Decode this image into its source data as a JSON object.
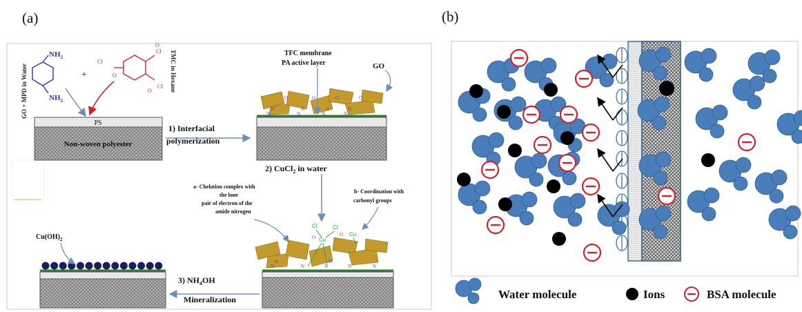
{
  "panel_a": {
    "label": "(a)",
    "mpd_formula": "NH",
    "mpd_formula_sub": "2",
    "mpd_side_label": "GO + MPD in Water",
    "plus": "+",
    "tmc_side_label": "TMC in Hexane",
    "acyl_cl": "Cl",
    "acyl_o": "O",
    "ps_label": "PS",
    "nonwoven_label": "Non-woven polyester",
    "step1_line1": "1) Interfacial",
    "step1_line2": "polymerization",
    "tfc_line1": "TFC membrane",
    "tfc_line2": "PA active layer",
    "go_label": "GO",
    "step2_prefix": "2) CuCl",
    "step2_sub": "2",
    "step2_suffix": " in water",
    "note_a": [
      "a- Chelation complex with",
      "the lone",
      "pair of electron of  the",
      "amide nitrogen"
    ],
    "note_b": [
      "b- Coordination with",
      "carbonyl groups"
    ],
    "cuoh_prefix": "Cu(OH)",
    "cuoh_sub": "2",
    "step3_prefix": "3) NH",
    "step3_sub": "4",
    "step3_suffix": "OH",
    "step3_line2": "Mineralization",
    "cl_label": "Cl",
    "cu_label": "Cu",
    "amide_n": "N",
    "amide_h": "H",
    "amide_o": "O",
    "colors": {
      "sheet": "#c59a2d",
      "support": "#bfbfbf",
      "pa_line": "#2e7d32",
      "mpd": "#3b2ea8",
      "tmc": "#d4202c",
      "arrow": "#6d8fb7",
      "cu_ball": "#1a1f5c"
    }
  },
  "panel_b": {
    "label": "(b)",
    "legend": {
      "water": "Water molecule",
      "ions": "Ions",
      "bsa": "BSA molecule"
    },
    "colors": {
      "water": "#4a7ebb",
      "ion": "#000000",
      "bsa": "#d4202c",
      "membrane_stroke": "#41719c"
    }
  }
}
